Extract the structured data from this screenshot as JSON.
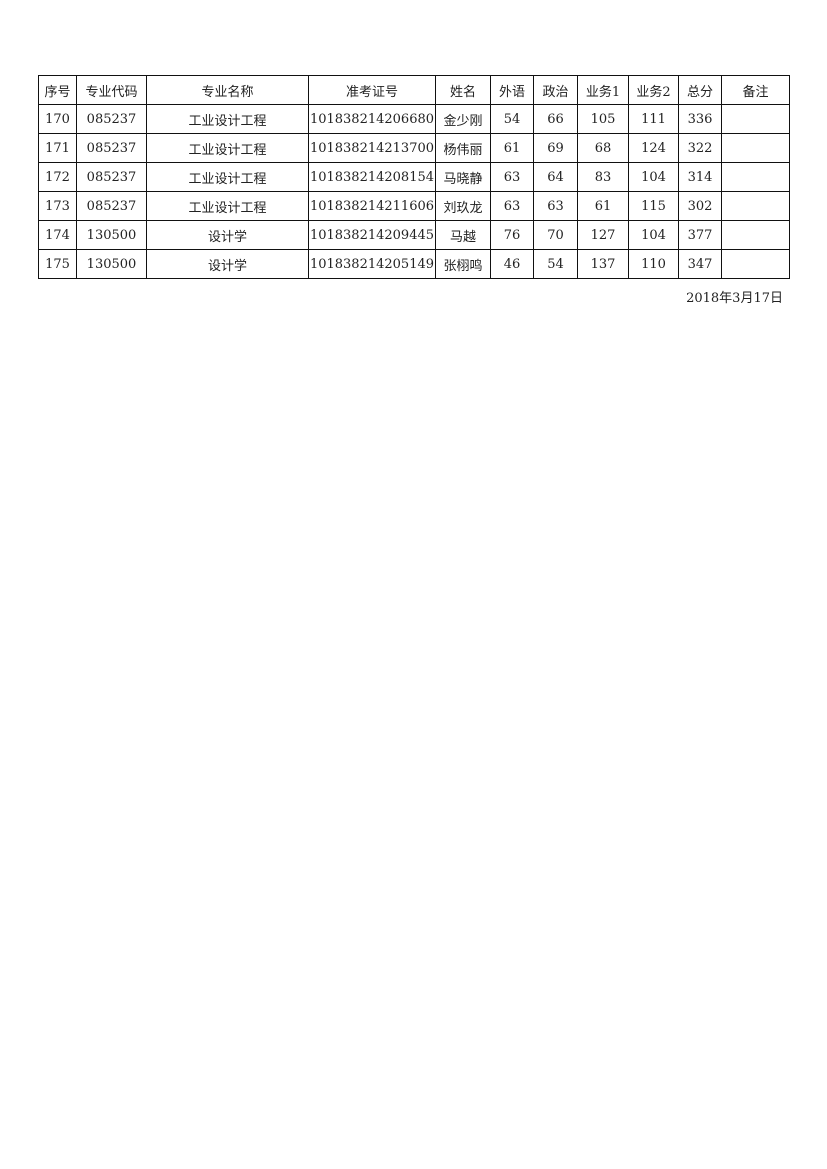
{
  "headers": [
    "序号",
    "专业代码",
    "专业名称",
    "准考证号",
    "姓名",
    "外语",
    "政治",
    "业务1",
    "业务2",
    "总分",
    "备注"
  ],
  "rows": [
    [
      "170",
      "085237",
      "工业设计工程",
      "101838214206680",
      "金少刚",
      "54",
      "66",
      "105",
      "111",
      "336",
      ""
    ],
    [
      "171",
      "085237",
      "工业设计工程",
      "101838214213700",
      "杨伟丽",
      "61",
      "69",
      "68",
      "124",
      "322",
      ""
    ],
    [
      "172",
      "085237",
      "工业设计工程",
      "101838214208154",
      "马晓静",
      "63",
      "64",
      "83",
      "104",
      "314",
      ""
    ],
    [
      "173",
      "085237",
      "工业设计工程",
      "101838214211606",
      "刘玖龙",
      "63",
      "63",
      "61",
      "115",
      "302",
      ""
    ],
    [
      "174",
      "130500",
      "设计学",
      "101838214209445",
      "马越",
      "76",
      "70",
      "127",
      "104",
      "377",
      ""
    ],
    [
      "175",
      "130500",
      "设计学",
      "101838214205149",
      "张栩鸣",
      "46",
      "54",
      "137",
      "110",
      "347",
      ""
    ]
  ],
  "date": "2018年3月17日"
}
